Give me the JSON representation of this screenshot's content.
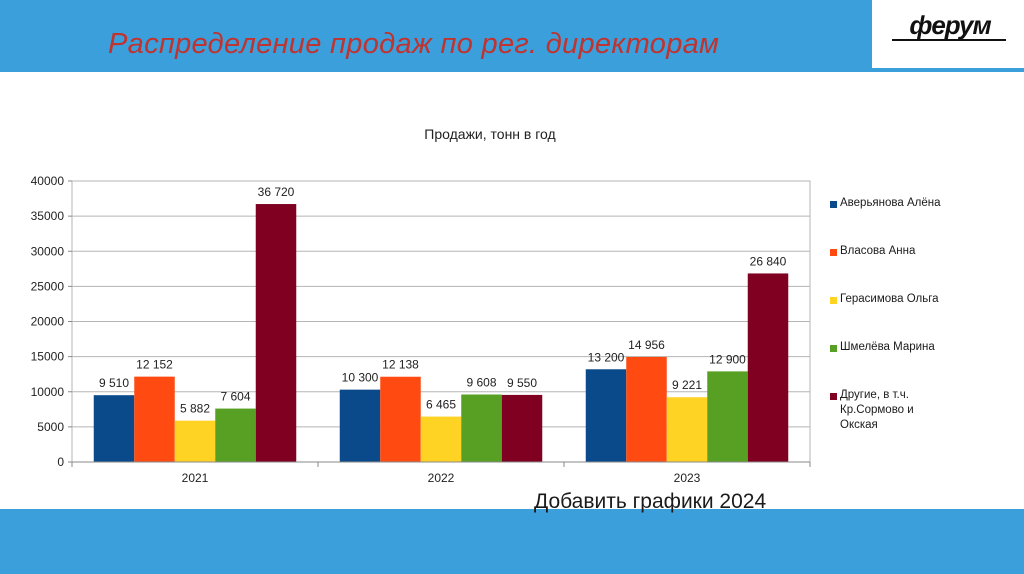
{
  "slide": {
    "title": "Распределение продаж по рег. директорам",
    "footnote": "Добавить графики 2024"
  },
  "logo": {
    "text": "ферум"
  },
  "colors": {
    "band": "#3a9fda",
    "title": "#c0332f",
    "series": [
      "#0b4a8a",
      "#ff4b12",
      "#ffd324",
      "#58a023",
      "#7f0021"
    ]
  },
  "chart_data": {
    "type": "bar",
    "title": "Продажи, тонн в год",
    "categories": [
      "2021",
      "2022",
      "2023"
    ],
    "ylim": [
      0,
      40000
    ],
    "yticks": [
      "0",
      "5000",
      "10000",
      "15000",
      "20000",
      "25000",
      "30000",
      "35000",
      "40000"
    ],
    "ytick_values": [
      0,
      5000,
      10000,
      15000,
      20000,
      25000,
      30000,
      35000,
      40000
    ],
    "grid": true,
    "legend": "right",
    "series": [
      {
        "name": "Аверьянова Алёна",
        "values": [
          9510,
          10300,
          13200
        ],
        "labels": [
          "9 510",
          "10 300",
          "13 200"
        ]
      },
      {
        "name": "Власова Анна",
        "values": [
          12152,
          12138,
          14956
        ],
        "labels": [
          "12 152",
          "12 138",
          "14 956"
        ]
      },
      {
        "name": "Герасимова Ольга",
        "values": [
          5882,
          6465,
          9221
        ],
        "labels": [
          "5 882",
          "6 465",
          "9 221"
        ]
      },
      {
        "name": "Шмелёва Марина",
        "values": [
          7604,
          9608,
          12900
        ],
        "labels": [
          "7 604",
          "9 608",
          "12 900"
        ]
      },
      {
        "name": "Другие, в т.ч. Кр.Сормово и Окская",
        "values": [
          36720,
          9550,
          26840
        ],
        "labels": [
          "36 720",
          "9 550",
          "26 840"
        ]
      }
    ]
  }
}
